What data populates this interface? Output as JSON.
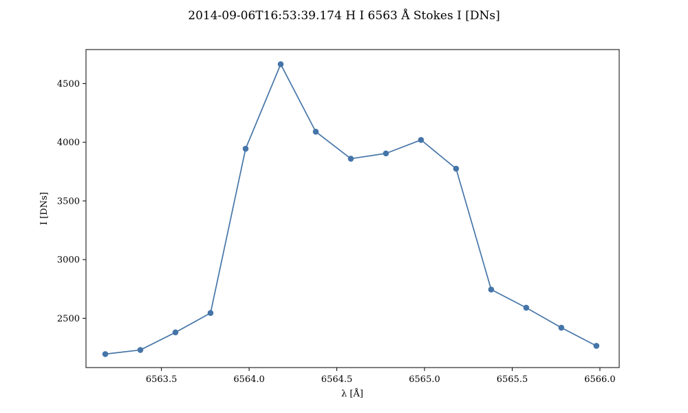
{
  "chart_data": {
    "type": "line",
    "title": "2014-09-06T16:53:39.174 H I 6563 Å Stokes I [DNs]",
    "xlabel": "λ [Å]",
    "ylabel": "I [DNs]",
    "xlim": [
      6563.07,
      6566.11
    ],
    "ylim": [
      2080,
      4790
    ],
    "xticks": [
      6563.5,
      6564.0,
      6564.5,
      6565.0,
      6565.5,
      6566.0
    ],
    "xtick_labels": [
      "6563.5",
      "6564.0",
      "6564.5",
      "6565.0",
      "6565.5",
      "6566.0"
    ],
    "yticks": [
      2500,
      3000,
      3500,
      4000,
      4500
    ],
    "ytick_labels": [
      "2500",
      "3000",
      "3500",
      "4000",
      "4500"
    ],
    "grid": false,
    "legend": "none",
    "series": [
      {
        "color": "#4575a8",
        "marker": "circle",
        "x": [
          6563.18,
          6563.38,
          6563.58,
          6563.78,
          6563.98,
          6564.18,
          6564.38,
          6564.58,
          6564.78,
          6564.98,
          6565.18,
          6565.38,
          6565.58,
          6565.78,
          6565.98
        ],
        "y": [
          2195,
          2230,
          2380,
          2545,
          3945,
          4665,
          4090,
          3860,
          3905,
          4020,
          3775,
          2745,
          2590,
          2420,
          2265
        ]
      }
    ]
  }
}
